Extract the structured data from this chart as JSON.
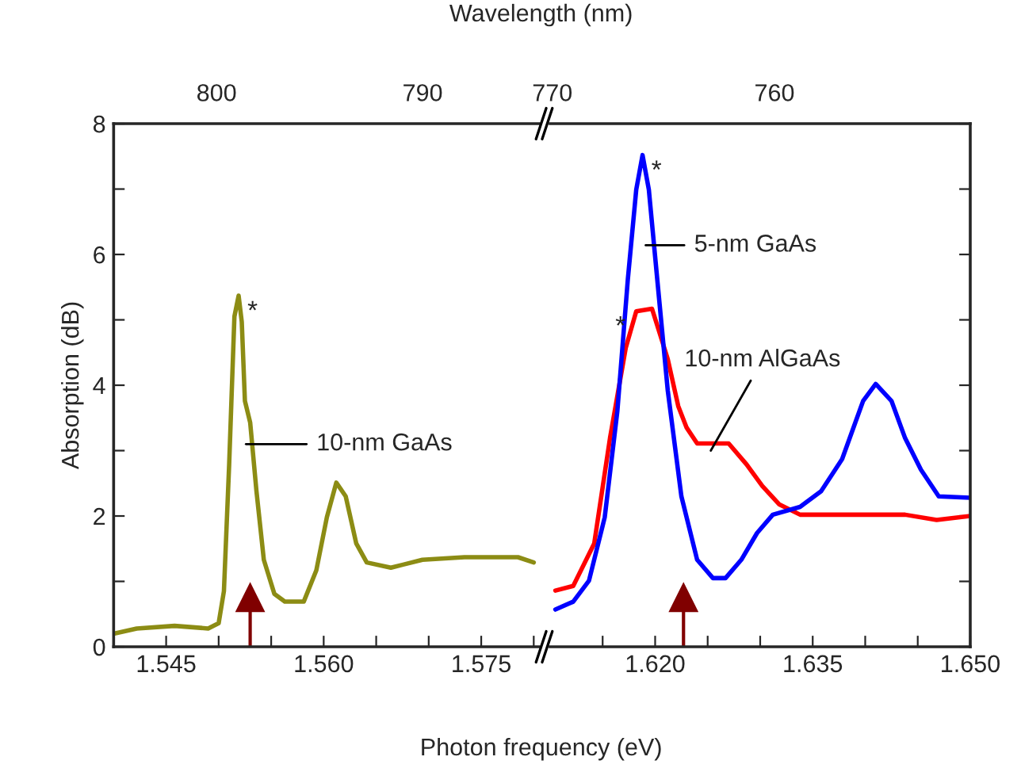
{
  "chart_data": [
    {
      "type": "line",
      "xlabel": "Photon frequency (eV)",
      "ylabel": "Absorption (dB)",
      "x2label": "Wavelength (nm)",
      "xlim": [
        1.54,
        1.5805
      ],
      "xticks": [
        {
          "value": 1.54,
          "label": null
        },
        1.545,
        {
          "value": 1.55,
          "label": null
        },
        {
          "value": 1.555,
          "label": null
        },
        {
          "value": 1.56,
          "label": "1.560"
        },
        {
          "value": 1.565,
          "label": null
        },
        {
          "value": 1.57,
          "label": null
        },
        1.575,
        {
          "value": 1.58,
          "label": null
        }
      ],
      "x2lim": [
        805.09,
        784.46
      ],
      "x2ticks": [
        800,
        790
      ],
      "ylim": [
        0,
        8
      ],
      "yticks": [
        0,
        {
          "value": 1,
          "label": null
        },
        2,
        {
          "value": 3,
          "label": null
        },
        4,
        {
          "value": 5,
          "label": null
        },
        6,
        {
          "value": 7,
          "label": null
        },
        8
      ],
      "series": [
        {
          "color": "#8c8c14",
          "x": [
            1.54,
            1.5422,
            1.5458,
            1.549,
            1.55,
            1.5505,
            1.551,
            1.5515,
            1.5519,
            1.5522,
            1.5525,
            1.553,
            1.5536,
            1.5543,
            1.5553,
            1.5563,
            1.5581,
            1.5593,
            1.5603,
            1.5612,
            1.5621,
            1.5631,
            1.5641,
            1.5664,
            1.5694,
            1.5734,
            1.5785,
            1.58
          ],
          "values": [
            0.2,
            0.28,
            0.32,
            0.28,
            0.36,
            0.85,
            2.79,
            5.05,
            5.37,
            4.97,
            3.76,
            3.43,
            2.38,
            1.33,
            0.81,
            0.69,
            0.69,
            1.17,
            1.98,
            2.51,
            2.3,
            1.58,
            1.29,
            1.21,
            1.33,
            1.37,
            1.37,
            1.29
          ]
        }
      ],
      "ref_lines": [
        {
          "axis": "x",
          "value": 1.553,
          "color": "#800000"
        }
      ],
      "annotations": [
        {
          "text": "10-nm GaAs",
          "x": 1.5526,
          "y": 3.1
        },
        {
          "text": "*",
          "x": 1.5519,
          "y": 5.37
        }
      ]
    },
    {
      "type": "line",
      "tick_labels": "x",
      "xlim": [
        1.61,
        1.65
      ],
      "xticks": [
        {
          "value": 1.615,
          "label": null
        },
        {
          "value": 1.62,
          "label": "1.620"
        },
        {
          "value": 1.625,
          "label": null
        },
        {
          "value": 1.63,
          "label": null
        },
        1.635,
        {
          "value": 1.64,
          "label": null
        },
        {
          "value": 1.645,
          "label": null
        },
        {
          "value": 1.65,
          "label": "1.650"
        }
      ],
      "x2lim": [
        770.1,
        751.4
      ],
      "x2ticks": [
        770,
        760
      ],
      "ylim": [
        0,
        8
      ],
      "yticks": [
        0,
        {
          "value": 1,
          "label": null
        },
        2,
        {
          "value": 3,
          "label": null
        },
        4,
        {
          "value": 5,
          "label": null
        },
        6,
        {
          "value": 7,
          "label": null
        },
        8
      ],
      "series": [
        {
          "color": "#ff0000",
          "x": [
            1.6105,
            1.6122,
            1.6142,
            1.6157,
            1.6172,
            1.6182,
            1.6197,
            1.6212,
            1.6222,
            1.623,
            1.624,
            1.627,
            1.6287,
            1.6302,
            1.6318,
            1.6338,
            1.6388,
            1.6438,
            1.6468,
            1.65
          ],
          "values": [
            0.86,
            0.93,
            1.58,
            3.19,
            4.57,
            5.13,
            5.17,
            4.4,
            3.68,
            3.35,
            3.11,
            3.11,
            2.79,
            2.46,
            2.18,
            2.02,
            2.02,
            2.02,
            1.94,
            2.0
          ]
        },
        {
          "color": "#0000ff",
          "x": [
            1.6105,
            1.6122,
            1.6137,
            1.6152,
            1.6164,
            1.6174,
            1.6182,
            1.6188,
            1.6194,
            1.6202,
            1.6212,
            1.6225,
            1.624,
            1.6255,
            1.6267,
            1.6282,
            1.6297,
            1.6312,
            1.6338,
            1.6358,
            1.6378,
            1.6398,
            1.641,
            1.6425,
            1.6438,
            1.6453,
            1.647,
            1.65
          ],
          "values": [
            0.57,
            0.69,
            1.01,
            1.98,
            3.6,
            5.62,
            6.99,
            7.52,
            6.99,
            5.62,
            3.92,
            2.3,
            1.33,
            1.05,
            1.05,
            1.33,
            1.74,
            2.02,
            2.14,
            2.38,
            2.87,
            3.76,
            4.02,
            3.76,
            3.19,
            2.71,
            2.3,
            2.28
          ]
        }
      ],
      "ref_lines": [
        {
          "axis": "x",
          "value": 1.6227,
          "color": "#800000"
        }
      ],
      "annotations": [
        {
          "text": "5-nm GaAs",
          "x": 1.6191,
          "y": 6.14
        },
        {
          "text": "10-nm AlGaAs",
          "x": 1.6253,
          "y": 3.0
        },
        {
          "text": "*",
          "x": 1.6188,
          "y": 7.52
        },
        {
          "text": "*",
          "x": 1.6197,
          "y": 5.17
        }
      ]
    }
  ]
}
